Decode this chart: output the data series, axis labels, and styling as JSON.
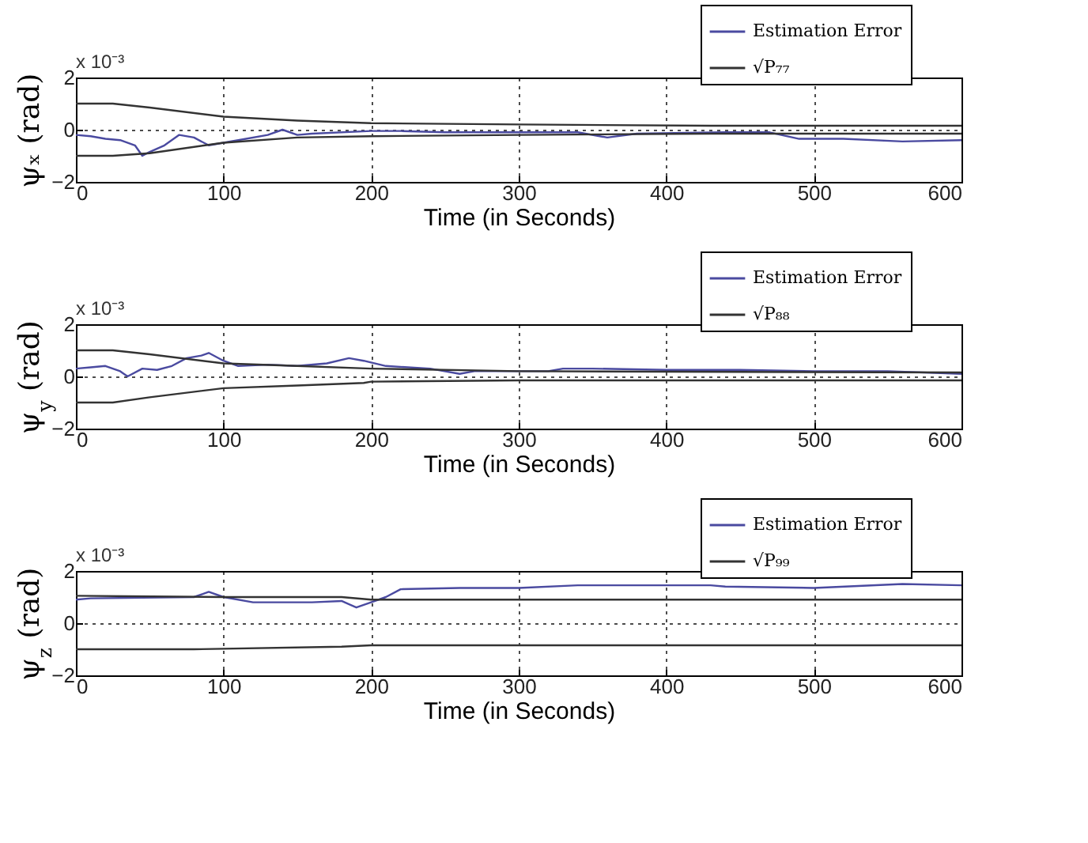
{
  "chart_data": [
    {
      "type": "line",
      "xlabel": "Time (in Seconds)",
      "ylabel": "ψₓ (rad)",
      "annotations": [
        "x 10⁻³"
      ],
      "xlim": [
        0,
        600
      ],
      "xticks": [
        0,
        100,
        200,
        300,
        400,
        500,
        600
      ],
      "ylim": [
        -2,
        2
      ],
      "yticks": [
        -2,
        0,
        2
      ],
      "grid": true,
      "legend": "top right",
      "series": [
        {
          "name": "Estimation Error",
          "color": "#4a4aa0",
          "x": [
            0,
            10,
            20,
            30,
            40,
            45,
            50,
            60,
            70,
            80,
            90,
            100,
            110,
            130,
            140,
            150,
            160,
            200,
            220,
            250,
            300,
            340,
            360,
            380,
            440,
            470,
            490,
            520,
            560,
            600
          ],
          "values": [
            -0.2,
            -0.25,
            -0.35,
            -0.4,
            -0.6,
            -1.0,
            -0.85,
            -0.6,
            -0.2,
            -0.3,
            -0.6,
            -0.5,
            -0.4,
            -0.2,
            0.0,
            -0.2,
            -0.15,
            -0.05,
            -0.05,
            -0.1,
            -0.1,
            -0.1,
            -0.3,
            -0.15,
            -0.1,
            -0.1,
            -0.35,
            -0.35,
            -0.45,
            -0.4
          ]
        },
        {
          "name": "√P₇₇",
          "color": "#333333",
          "x": [
            0,
            25,
            50,
            100,
            150,
            200,
            300,
            430,
            600
          ],
          "values": [
            1.0,
            1.0,
            0.85,
            0.5,
            0.35,
            0.25,
            0.2,
            0.15,
            0.15
          ]
        },
        {
          "color": "#333333",
          "x": [
            0,
            25,
            50,
            100,
            150,
            200,
            300,
            430,
            600
          ],
          "values": [
            -1.0,
            -1.0,
            -0.9,
            -0.5,
            -0.3,
            -0.25,
            -0.2,
            -0.15,
            -0.15
          ]
        }
      ]
    },
    {
      "type": "line",
      "xlabel": "Time (in Seconds)",
      "ylabel": "ψ$_{y}$ (rad)",
      "annotations": [
        "x 10⁻³"
      ],
      "xlim": [
        0,
        600
      ],
      "xticks": [
        0,
        100,
        200,
        300,
        400,
        500,
        600
      ],
      "ylim": [
        -2,
        2
      ],
      "yticks": [
        -2,
        0,
        2
      ],
      "grid": true,
      "legend": "top right",
      "series": [
        {
          "name": "Estimation Error",
          "color": "#4a4aa0",
          "x": [
            0,
            10,
            20,
            30,
            35,
            45,
            55,
            65,
            75,
            85,
            90,
            100,
            110,
            130,
            150,
            170,
            185,
            195,
            210,
            240,
            260,
            270,
            300,
            320,
            330,
            350,
            400,
            450,
            500,
            550,
            600
          ],
          "values": [
            0.3,
            0.35,
            0.4,
            0.2,
            0.0,
            0.3,
            0.25,
            0.4,
            0.7,
            0.8,
            0.9,
            0.6,
            0.4,
            0.45,
            0.4,
            0.5,
            0.7,
            0.6,
            0.4,
            0.3,
            0.1,
            0.2,
            0.2,
            0.2,
            0.3,
            0.3,
            0.25,
            0.25,
            0.2,
            0.2,
            0.1
          ]
        },
        {
          "name": "√P₈₈",
          "color": "#333333",
          "x": [
            0,
            25,
            50,
            100,
            150,
            200,
            300,
            600
          ],
          "values": [
            1.0,
            1.0,
            0.85,
            0.5,
            0.4,
            0.3,
            0.2,
            0.15
          ]
        },
        {
          "color": "#333333",
          "x": [
            0,
            25,
            50,
            100,
            150,
            195,
            200,
            300,
            600
          ],
          "values": [
            -1.0,
            -1.0,
            -0.8,
            -0.45,
            -0.35,
            -0.25,
            -0.2,
            -0.15,
            -0.15
          ]
        }
      ]
    },
    {
      "type": "line",
      "xlabel": "Time (in Seconds)",
      "ylabel": "ψ$_{z}$ (rad)",
      "annotations": [
        "x 10⁻³"
      ],
      "xlim": [
        0,
        600
      ],
      "xticks": [
        0,
        100,
        200,
        300,
        400,
        500,
        600
      ],
      "ylim": [
        -2,
        2
      ],
      "yticks": [
        -2,
        0,
        2
      ],
      "grid": true,
      "legend": "top right",
      "series": [
        {
          "name": "Estimation Error",
          "color": "#4a4aa0",
          "x": [
            0,
            10,
            80,
            90,
            100,
            120,
            160,
            180,
            190,
            200,
            210,
            220,
            260,
            300,
            340,
            430,
            440,
            500,
            560,
            600
          ],
          "values": [
            0.9,
            0.95,
            1.0,
            1.2,
            1.0,
            0.8,
            0.8,
            0.85,
            0.6,
            0.8,
            1.0,
            1.3,
            1.35,
            1.35,
            1.45,
            1.45,
            1.4,
            1.35,
            1.5,
            1.45
          ]
        },
        {
          "name": "√P₉₉",
          "color": "#333333",
          "x": [
            0,
            100,
            180,
            200,
            600
          ],
          "values": [
            1.05,
            1.0,
            1.0,
            0.9,
            0.9
          ]
        },
        {
          "color": "#333333",
          "x": [
            0,
            80,
            180,
            200,
            600
          ],
          "values": [
            -1.0,
            -1.0,
            -0.9,
            -0.85,
            -0.85
          ]
        }
      ]
    }
  ]
}
